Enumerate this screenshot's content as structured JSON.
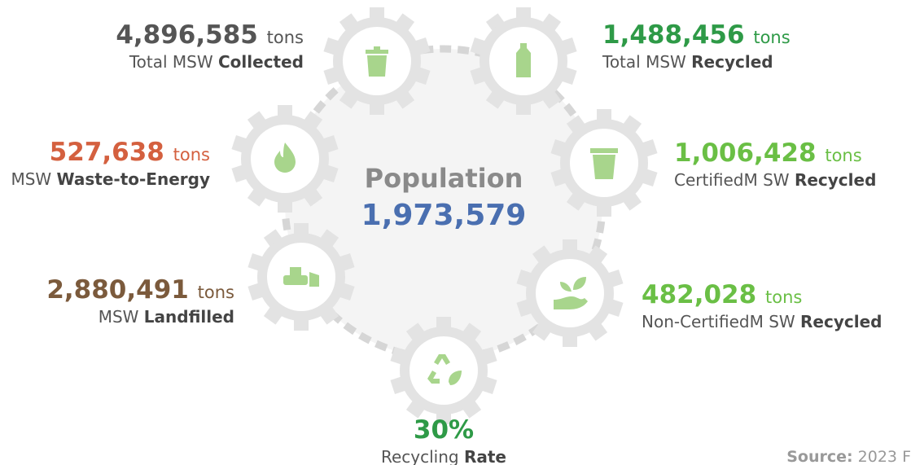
{
  "center": {
    "title": "Population",
    "value": "1,973,579"
  },
  "metrics": [
    {
      "value": "4,896,585",
      "unit": "tons",
      "label": "Total MSW ",
      "label_bold": "Collected",
      "color": "#555555"
    },
    {
      "value": "1,488,456",
      "unit": "tons",
      "label": "Total MSW ",
      "label_bold": "Recycled",
      "color": "#2e9a47"
    },
    {
      "value": "527,638",
      "unit": "tons",
      "label": "MSW ",
      "label_bold": "Waste-to-Energy",
      "color": "#d4603f"
    },
    {
      "value": "1,006,428",
      "unit": "tons",
      "label": "CertifiedM SW ",
      "label_bold": "Recycled",
      "color": "#6abf45"
    },
    {
      "value": "2,880,491",
      "unit": "tons",
      "label": "MSW ",
      "label_bold": "Landfilled",
      "color": "#7b5a3c"
    },
    {
      "value": "482,028",
      "unit": "tons",
      "label": "Non-CertifiedM SW ",
      "label_bold": "Recycled",
      "color": "#6abf45"
    },
    {
      "value": "30%",
      "label": "Recycling ",
      "label_bold": "Rate",
      "color": "#2e9a47"
    }
  ],
  "source": {
    "label": "Source:",
    "text": "2023 F"
  }
}
